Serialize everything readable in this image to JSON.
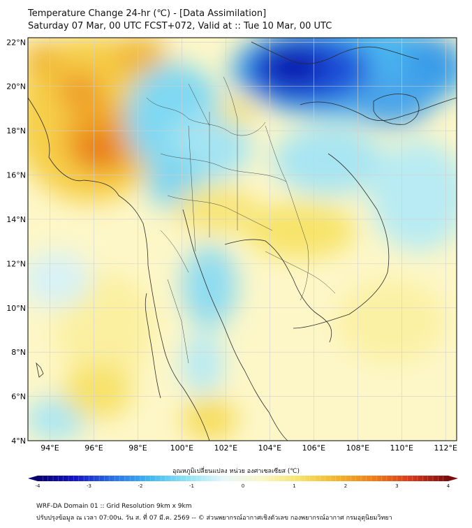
{
  "title": {
    "line1": "Temperature Change 24-hr (℃) - [Data Assimilation]",
    "line2": "Saturday 07 Mar, 00 UTC FCST+072, Valid at :: Tue 10 Mar, 00 UTC"
  },
  "map": {
    "lat_labels": [
      "22°N",
      "20°N",
      "18°N",
      "16°N",
      "14°N",
      "12°N",
      "10°N",
      "8°N",
      "6°N",
      "4°N"
    ],
    "lon_labels": [
      "94°E",
      "96°E",
      "98°E",
      "100°E",
      "102°E",
      "104°E",
      "106°E",
      "108°E",
      "110°E",
      "112°E"
    ]
  },
  "colorbar": {
    "title": "อุณหภูมิเปลี่ยนแปลง หน่วย องศาเซลเซียส (℃)",
    "ticks": [
      "-4",
      "-3",
      "-2",
      "-1",
      "0",
      "1",
      "2",
      "3",
      "4"
    ],
    "min": -4,
    "max": 4,
    "colors": [
      "#08006e",
      "#1414c8",
      "#2a6fe6",
      "#3fb8f0",
      "#8fe3f5",
      "#e6f7fa",
      "#fbf6c8",
      "#f6e36a",
      "#f3b52a",
      "#ef7d18",
      "#d8381b",
      "#7a0d0d"
    ]
  },
  "footer": {
    "line1": "WRF-DA Domain 01 :: Grid Resolution 9km x 9km",
    "line2": "ปรับปรุงข้อมูล ณ เวลา 07:00น. วัน ส. ที่ 07 มี.ค. 2569 -- © ส่วนพยากรณ์อากาศเชิงตัวเลข กองพยากรณ์อากาศ กรมอุตุนิยมวิทยา"
  }
}
